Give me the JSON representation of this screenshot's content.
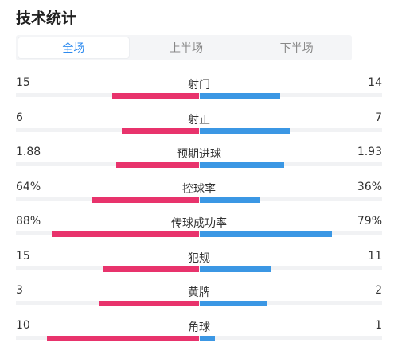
{
  "page_title": "技术统计",
  "tabs": [
    {
      "label": "全场",
      "active": true
    },
    {
      "label": "上半场",
      "active": false
    },
    {
      "label": "下半场",
      "active": false
    }
  ],
  "colors": {
    "home": "#e8336c",
    "away": "#3b97e4",
    "accent": "#2e8bef"
  },
  "stats": [
    {
      "label": "射门",
      "home": "15",
      "away": "14",
      "home_share": 0.517,
      "away_share": 0.483
    },
    {
      "label": "射正",
      "home": "6",
      "away": "7",
      "home_share": 0.462,
      "away_share": 0.538
    },
    {
      "label": "预期进球",
      "home": "1.88",
      "away": "1.93",
      "home_share": 0.493,
      "away_share": 0.507
    },
    {
      "label": "控球率",
      "home": "64%",
      "away": "36%",
      "home_share": 0.64,
      "away_share": 0.36
    },
    {
      "label": "传球成功率",
      "home": "88%",
      "away": "79%",
      "home_share": 0.88,
      "away_share": 0.79
    },
    {
      "label": "犯规",
      "home": "15",
      "away": "11",
      "home_share": 0.577,
      "away_share": 0.423
    },
    {
      "label": "黄牌",
      "home": "3",
      "away": "2",
      "home_share": 0.6,
      "away_share": 0.4
    },
    {
      "label": "角球",
      "home": "10",
      "away": "1",
      "home_share": 0.909,
      "away_share": 0.091
    }
  ]
}
